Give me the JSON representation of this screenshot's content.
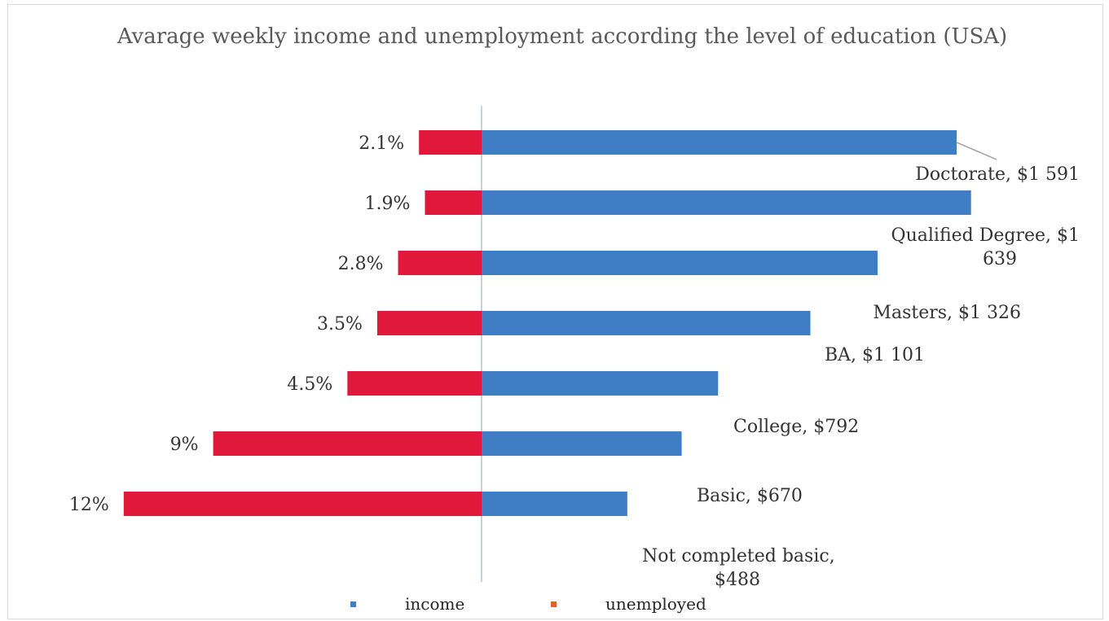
{
  "chart_data": {
    "type": "bar",
    "orientation": "horizontal-diverging",
    "title": "Avarage weekly income and unemployment according the level of education (USA)",
    "categories": [
      "Doctorate",
      "Qualified Degree",
      "Masters",
      "BA",
      "College",
      "Basic",
      "Not completed basic"
    ],
    "series": [
      {
        "name": "income",
        "color": "#3f7ec4",
        "values": [
          1591,
          1639,
          1326,
          1101,
          792,
          670,
          488
        ],
        "data_labels": [
          "Doctorate, $1 591",
          "Qualified Degree, $1 639",
          "Masters, $1 326",
          "BA, $1 101",
          "College, $792",
          "Basic, $670",
          "Not completed basic, $488"
        ]
      },
      {
        "name": "unemployed",
        "color": "#e0193a",
        "legend_color": "#e2622a",
        "values": [
          2.1,
          1.9,
          2.8,
          3.5,
          4.5,
          9,
          12
        ],
        "data_labels": [
          "2.1%",
          "1.9%",
          "2.8%",
          "3.5%",
          "4.5%",
          "9%",
          "12%"
        ]
      }
    ],
    "legend_position": "bottom",
    "grid": false
  }
}
